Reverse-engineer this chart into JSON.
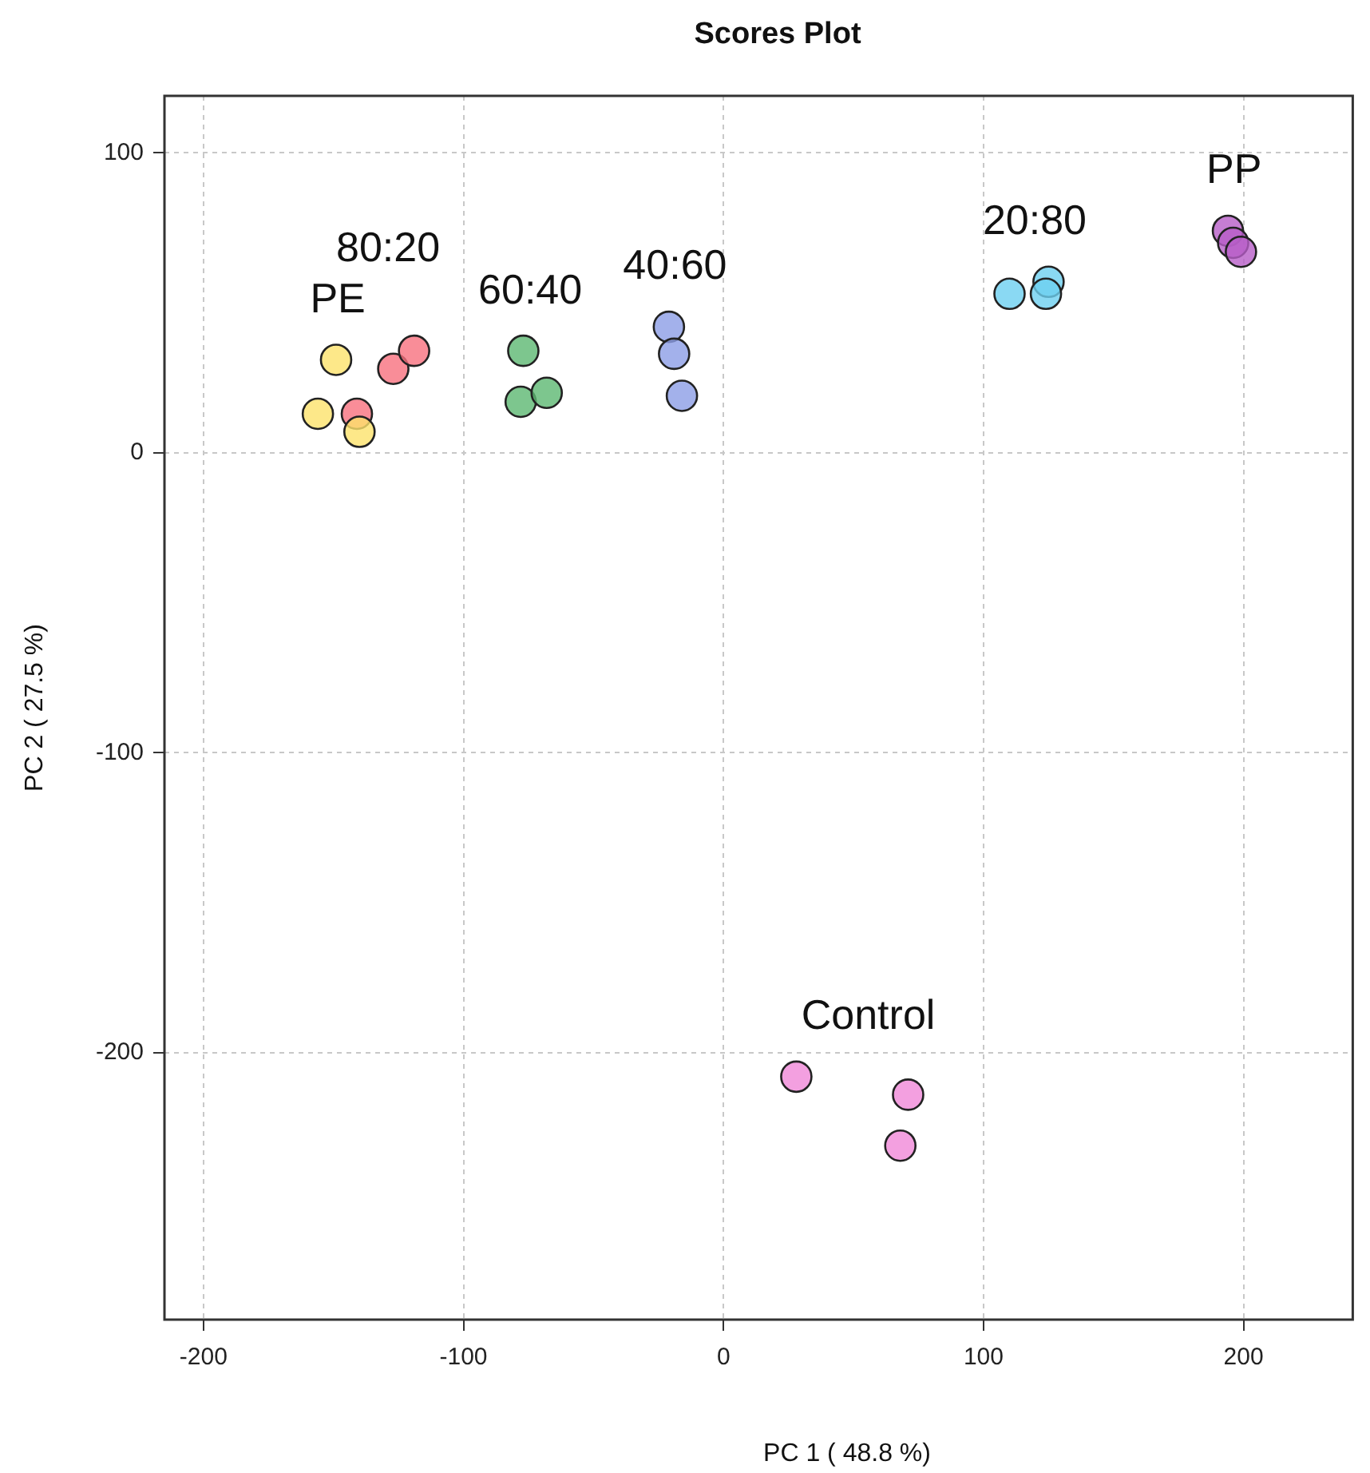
{
  "chart_data": {
    "type": "scatter",
    "title": "Scores Plot",
    "xlabel": "PC 1 ( 48.8 %)",
    "ylabel": "PC 2 ( 27.5 %)",
    "xlim": [
      -215,
      242
    ],
    "ylim": [
      -289,
      119
    ],
    "xticks": [
      -200,
      -100,
      0,
      100,
      200
    ],
    "yticks": [
      -200,
      -100,
      0,
      100
    ],
    "grid": true,
    "legend": false,
    "marker": "circle",
    "series": [
      {
        "name": "PE",
        "color": "#fde26b",
        "x": [
          -149,
          -156,
          -140
        ],
        "values": [
          31,
          13,
          7
        ]
      },
      {
        "name": "80:20",
        "color": "#f8717e",
        "x": [
          -141,
          -127,
          -119
        ],
        "values": [
          13,
          28,
          34
        ]
      },
      {
        "name": "60:40",
        "color": "#5db872",
        "x": [
          -77,
          -78,
          -68
        ],
        "values": [
          34,
          17,
          20
        ]
      },
      {
        "name": "40:60",
        "color": "#8c9de6",
        "x": [
          -21,
          -19,
          -16
        ],
        "values": [
          42,
          33,
          19
        ]
      },
      {
        "name": "20:80",
        "color": "#6dd0f0",
        "x": [
          110,
          125,
          124
        ],
        "values": [
          53,
          57,
          53
        ]
      },
      {
        "name": "PP",
        "color": "#b85ec8",
        "x": [
          194,
          196,
          199
        ],
        "values": [
          74,
          70,
          67
        ]
      },
      {
        "name": "Control",
        "color": "#f088d8",
        "x": [
          28,
          71,
          68
        ],
        "values": [
          -208,
          -214,
          -231
        ]
      }
    ]
  }
}
